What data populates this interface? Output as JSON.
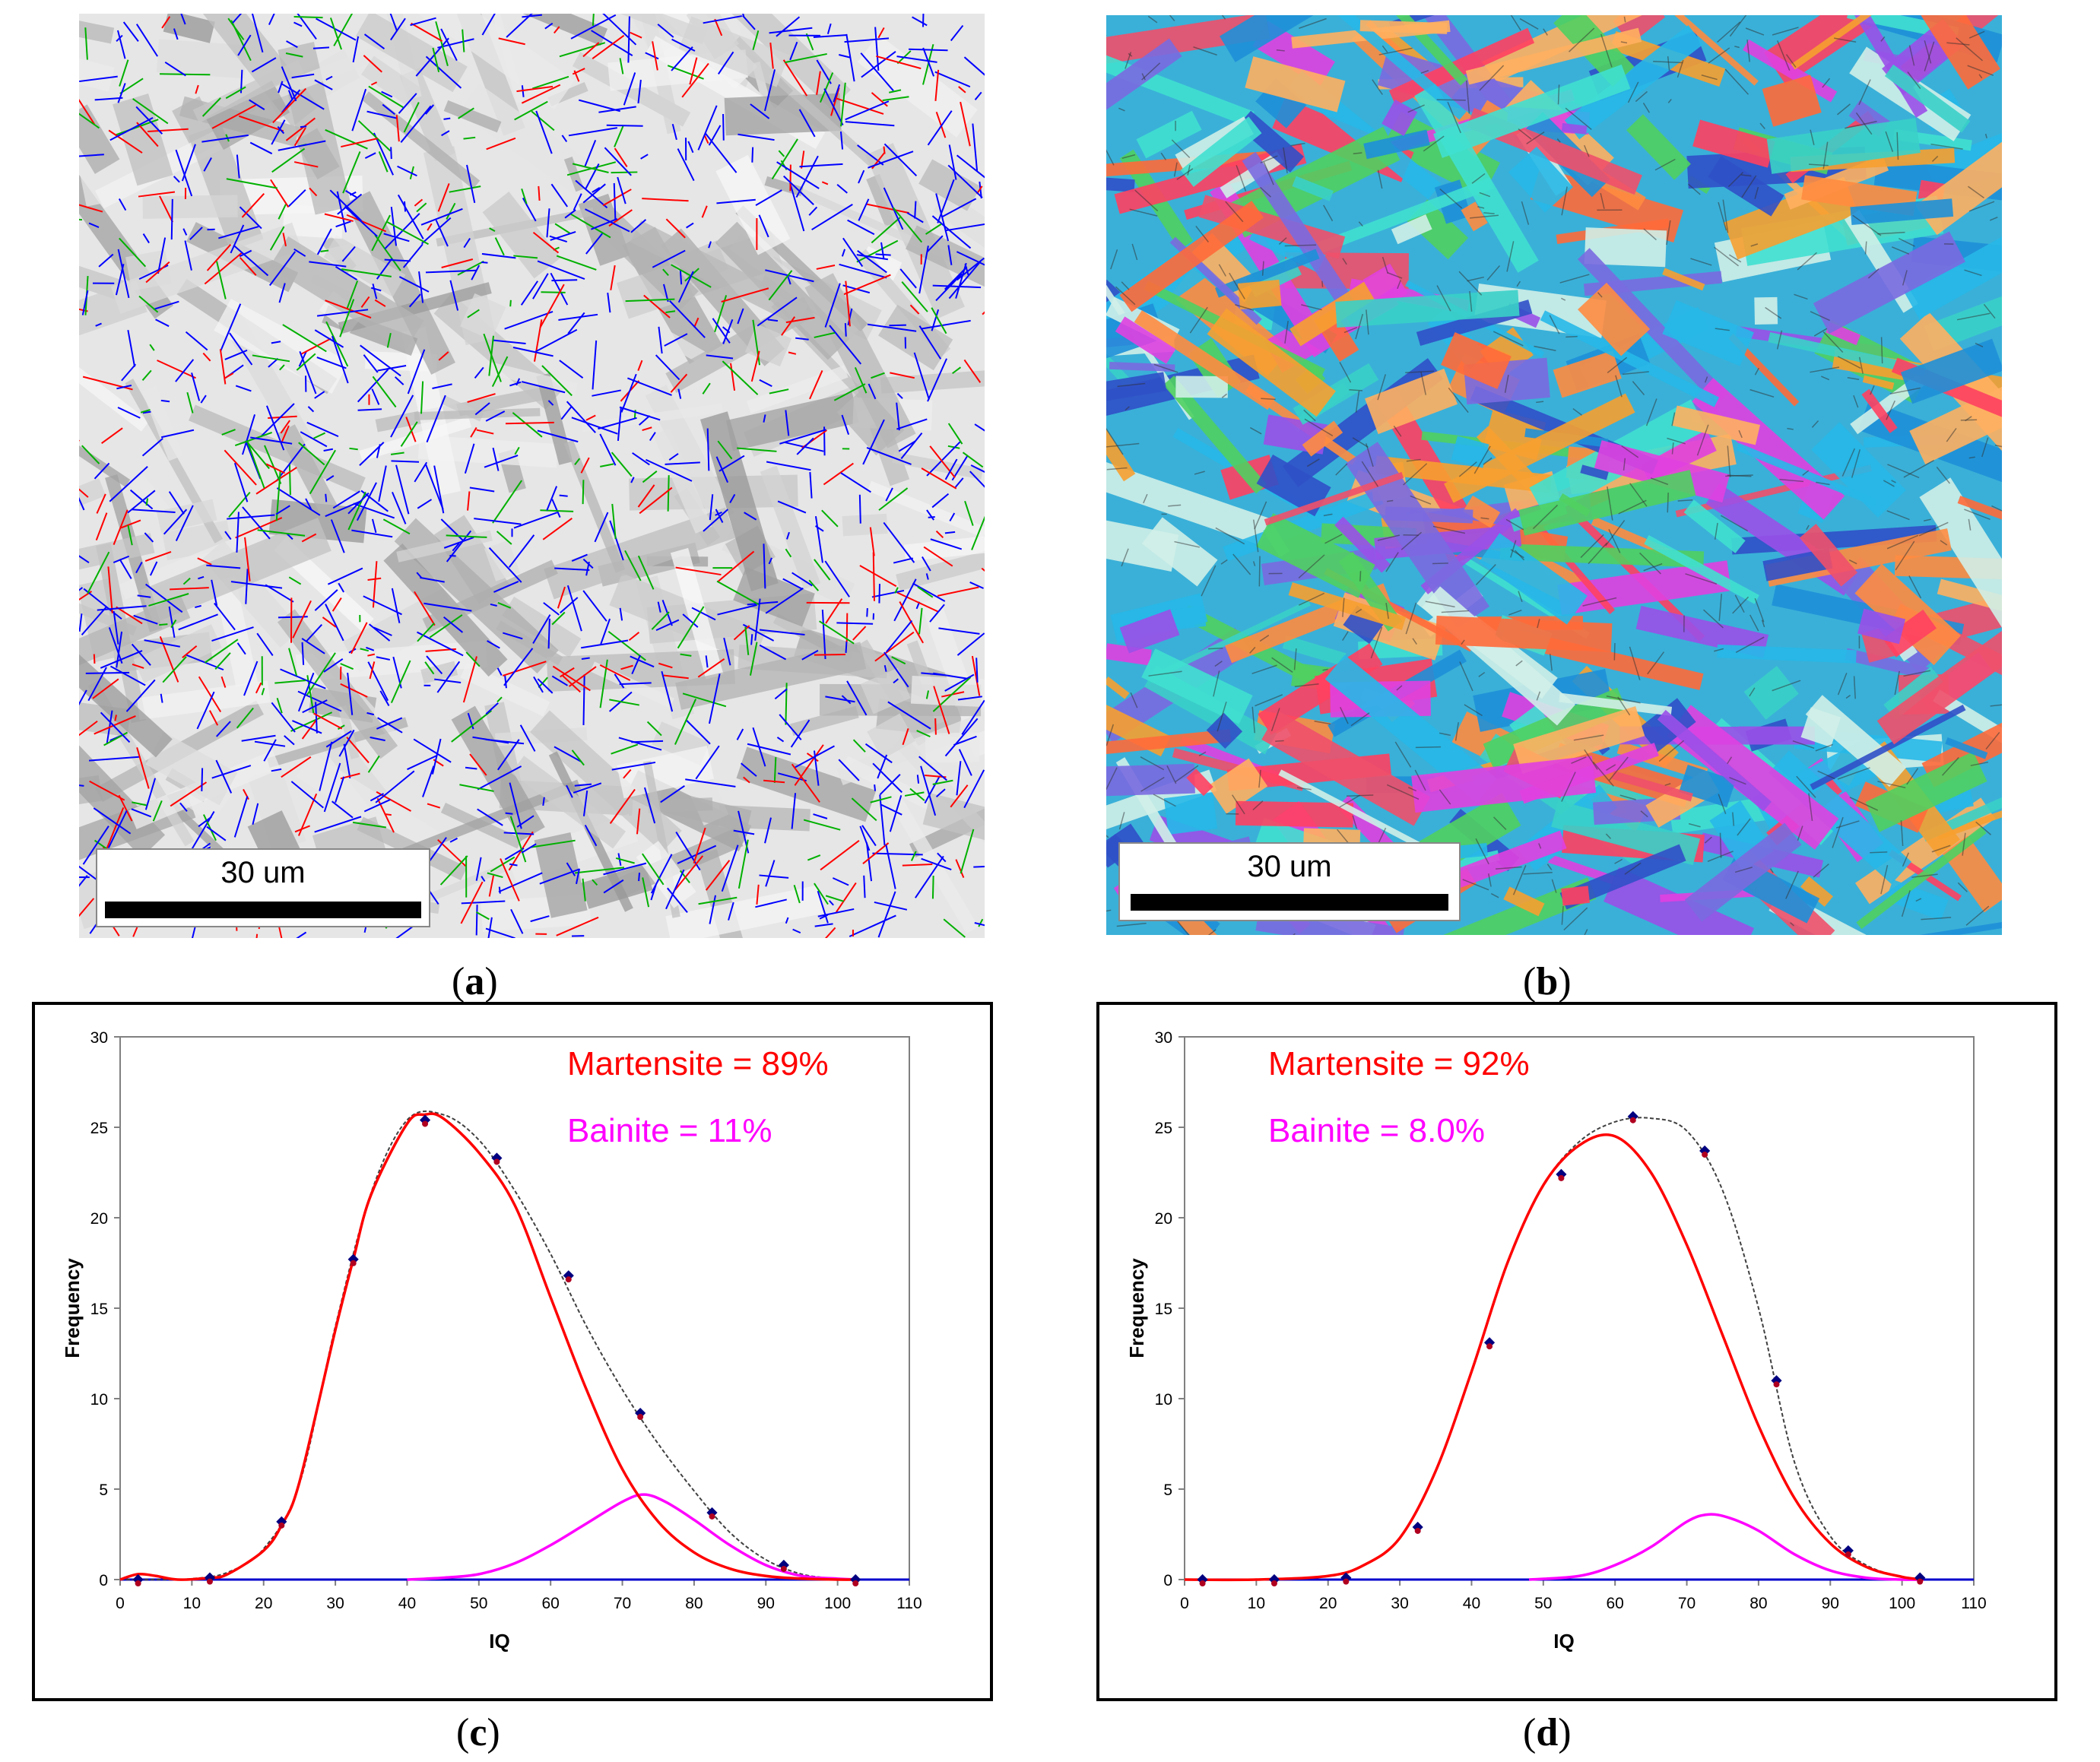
{
  "panels": {
    "a": {
      "caption": "a",
      "scale_label": "30 um"
    },
    "b": {
      "caption": "b",
      "scale_label": "30 um"
    },
    "c": {
      "caption": "c"
    },
    "d": {
      "caption": "d"
    }
  },
  "colors": {
    "martensite": "#ff0000",
    "bainite": "#ff00ff",
    "experimental": "#000080",
    "baseline": "#0000cc",
    "boundary_high": "#0000ff",
    "boundary_low": "#ff0000",
    "boundary_mid": "#00b000"
  },
  "chart_data": [
    {
      "type": "line",
      "panel": "c",
      "xlabel": "IQ",
      "ylabel": "Frequency",
      "xlim": [
        0,
        110
      ],
      "ylim": [
        0,
        30
      ],
      "xticks": [
        0,
        10,
        20,
        30,
        40,
        50,
        60,
        70,
        80,
        90,
        100,
        110
      ],
      "yticks": [
        0,
        5,
        10,
        15,
        20,
        25,
        30
      ],
      "annotations": [
        {
          "text": "Martensite = 89%",
          "color": "#ff0000"
        },
        {
          "text": "Bainite = 11%",
          "color": "#ff00ff"
        }
      ],
      "series": [
        {
          "name": "Experimental",
          "x": [
            2.5,
            12.5,
            22.5,
            32.5,
            42.5,
            52.5,
            62.5,
            72.5,
            82.5,
            92.5,
            102.5
          ],
          "values": [
            0.0,
            0.1,
            3.2,
            17.7,
            25.4,
            23.3,
            16.8,
            9.2,
            3.7,
            0.8,
            0.0
          ]
        },
        {
          "name": "Martensite fit",
          "x": [
            0,
            2.5,
            5,
            8,
            12.5,
            15,
            20,
            22.5,
            25,
            30,
            32.5,
            35,
            40,
            42.5,
            45,
            50,
            55,
            60,
            65,
            70,
            75,
            80,
            85,
            90,
            95,
            100,
            103
          ],
          "values": [
            0.0,
            0.3,
            0.2,
            0.0,
            0.1,
            0.3,
            1.6,
            3.0,
            5.4,
            13.8,
            17.7,
            21.3,
            25.2,
            25.7,
            25.5,
            23.6,
            20.7,
            15.6,
            10.5,
            6.1,
            3.2,
            1.5,
            0.6,
            0.2,
            0.05,
            0.0,
            0.0
          ]
        },
        {
          "name": "Bainite fit",
          "x": [
            40,
            45,
            50,
            55,
            60,
            65,
            70,
            73,
            76,
            80,
            85,
            90,
            95,
            100,
            103
          ],
          "values": [
            0.0,
            0.1,
            0.3,
            0.9,
            1.9,
            3.1,
            4.3,
            4.7,
            4.3,
            3.3,
            1.9,
            0.8,
            0.2,
            0.05,
            0.0
          ]
        },
        {
          "name": "Combined fit",
          "x": [
            0,
            5,
            10,
            15,
            20,
            25,
            30,
            35,
            40,
            45,
            50,
            55,
            60,
            65,
            70,
            75,
            80,
            85,
            90,
            95,
            100,
            103
          ],
          "values": [
            0.0,
            0.0,
            0.05,
            0.4,
            1.7,
            5.3,
            14.0,
            21.4,
            25.4,
            25.7,
            24.3,
            21.5,
            18.0,
            14.0,
            10.5,
            7.5,
            4.9,
            2.6,
            1.1,
            0.3,
            0.05,
            0.0
          ]
        }
      ]
    },
    {
      "type": "line",
      "panel": "d",
      "xlabel": "IQ",
      "ylabel": "Frequency",
      "xlim": [
        0,
        110
      ],
      "ylim": [
        0,
        30
      ],
      "xticks": [
        0,
        10,
        20,
        30,
        40,
        50,
        60,
        70,
        80,
        90,
        100,
        110
      ],
      "yticks": [
        0,
        5,
        10,
        15,
        20,
        25,
        30
      ],
      "annotations": [
        {
          "text": "Martensite = 92%",
          "color": "#ff0000"
        },
        {
          "text": "Bainite = 8.0%",
          "color": "#ff00ff"
        }
      ],
      "series": [
        {
          "name": "Experimental",
          "x": [
            2.5,
            12.5,
            22.5,
            32.5,
            42.5,
            52.5,
            62.5,
            72.5,
            82.5,
            92.5,
            102.5
          ],
          "values": [
            0.0,
            0.0,
            0.1,
            2.9,
            13.1,
            22.4,
            25.6,
            23.7,
            11.0,
            1.6,
            0.1
          ]
        },
        {
          "name": "Martensite fit",
          "x": [
            0,
            10,
            20,
            25,
            30,
            35,
            40,
            45,
            50,
            55,
            60,
            65,
            70,
            75,
            80,
            85,
            90,
            95,
            100,
            103
          ],
          "values": [
            0.0,
            0.0,
            0.2,
            0.8,
            2.3,
            6.0,
            11.5,
            17.5,
            21.8,
            24.0,
            24.5,
            22.5,
            18.5,
            13.5,
            8.5,
            4.5,
            2.0,
            0.7,
            0.15,
            0.0
          ]
        },
        {
          "name": "Bainite fit",
          "x": [
            48,
            55,
            60,
            65,
            70,
            73,
            76,
            80,
            85,
            90,
            95,
            100,
            103
          ],
          "values": [
            0.0,
            0.2,
            0.8,
            1.8,
            3.2,
            3.6,
            3.4,
            2.7,
            1.4,
            0.5,
            0.1,
            0.0,
            0.0
          ]
        },
        {
          "name": "Combined fit",
          "x": [
            0,
            10,
            20,
            25,
            30,
            35,
            40,
            45,
            50,
            55,
            60,
            65,
            70,
            75,
            80,
            85,
            90,
            95,
            100,
            103
          ],
          "values": [
            0.0,
            0.0,
            0.2,
            0.8,
            2.3,
            6.0,
            11.5,
            17.5,
            21.8,
            24.2,
            25.3,
            25.5,
            24.8,
            21.5,
            15.0,
            6.5,
            2.4,
            0.8,
            0.15,
            0.0
          ]
        }
      ]
    }
  ]
}
